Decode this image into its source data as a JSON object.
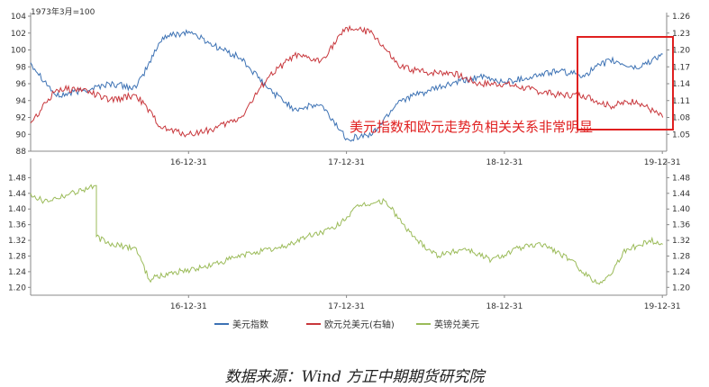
{
  "chart_data": [
    {
      "type": "line",
      "panel": "top",
      "left_axis_note": "1973年3月=100",
      "ylim_left": [
        88,
        104
      ],
      "yticks_left": [
        "88",
        "90",
        "92",
        "94",
        "96",
        "98",
        "100",
        "102",
        "104"
      ],
      "ylim_right": [
        1.02,
        1.26
      ],
      "yticks_right": [
        "1.05",
        "1.08",
        "1.11",
        "1.14",
        "1.17",
        "1.20",
        "1.23",
        "1.26"
      ],
      "x_ticks": [
        "16-12-31",
        "17-12-31",
        "18-12-31",
        "19-12-31"
      ],
      "annotation": "美元指数和欧元走势负相关关系非常明显",
      "series": [
        {
          "name": "美元指数",
          "axis": "left",
          "color": "#3d72b4",
          "x": [
            "2016-01",
            "2016-03",
            "2016-05",
            "2016-07",
            "2016-09",
            "2016-11",
            "2017-01",
            "2017-03",
            "2017-05",
            "2017-07",
            "2017-09",
            "2017-11",
            "2018-01",
            "2018-03",
            "2018-05",
            "2018-07",
            "2018-09",
            "2018-11",
            "2019-01",
            "2019-03",
            "2019-05",
            "2019-07",
            "2019-09",
            "2019-11",
            "2020-01"
          ],
          "values": [
            98.5,
            94.5,
            95.2,
            96.0,
            95.5,
            101.5,
            102.2,
            100.5,
            99.0,
            95.5,
            93.0,
            93.5,
            89.5,
            90.0,
            94.0,
            95.0,
            96.0,
            96.8,
            96.2,
            96.8,
            97.5,
            97.0,
            98.8,
            97.8,
            99.5
          ]
        },
        {
          "name": "欧元兑美元(右轴)",
          "axis": "right",
          "color": "#c8373c",
          "x": [
            "2016-01",
            "2016-03",
            "2016-05",
            "2016-07",
            "2016-09",
            "2016-11",
            "2017-01",
            "2017-03",
            "2017-05",
            "2017-07",
            "2017-09",
            "2017-11",
            "2018-01",
            "2018-03",
            "2018-05",
            "2018-07",
            "2018-09",
            "2018-11",
            "2019-01",
            "2019-03",
            "2019-05",
            "2019-07",
            "2019-09",
            "2019-11",
            "2020-01"
          ],
          "values": [
            1.07,
            1.13,
            1.13,
            1.11,
            1.12,
            1.06,
            1.05,
            1.06,
            1.08,
            1.15,
            1.19,
            1.18,
            1.24,
            1.23,
            1.17,
            1.16,
            1.16,
            1.14,
            1.14,
            1.13,
            1.12,
            1.12,
            1.1,
            1.11,
            1.08
          ]
        }
      ]
    },
    {
      "type": "line",
      "panel": "bottom",
      "ylim_left": [
        1.18,
        1.52
      ],
      "yticks_left": [
        "1.20",
        "1.24",
        "1.28",
        "1.32",
        "1.36",
        "1.40",
        "1.44",
        "1.48"
      ],
      "yticks_right": [
        "1.20",
        "1.24",
        "1.28",
        "1.32",
        "1.36",
        "1.40",
        "1.44",
        "1.48"
      ],
      "x_ticks": [
        "16-12-31",
        "17-12-31",
        "18-12-31",
        "19-12-31"
      ],
      "series": [
        {
          "name": "英镑兑美元",
          "axis": "left",
          "color": "#9bbb59",
          "x": [
            "2016-01",
            "2016-02",
            "2016-04",
            "2016-06",
            "2016-06",
            "2016-07",
            "2016-09",
            "2016-10",
            "2016-12",
            "2017-02",
            "2017-04",
            "2017-06",
            "2017-08",
            "2017-10",
            "2017-12",
            "2018-02",
            "2018-04",
            "2018-06",
            "2018-08",
            "2018-10",
            "2018-12",
            "2019-02",
            "2019-04",
            "2019-06",
            "2019-08",
            "2019-09",
            "2019-10",
            "2019-12",
            "2020-01"
          ],
          "values": [
            1.44,
            1.42,
            1.44,
            1.46,
            1.33,
            1.31,
            1.3,
            1.22,
            1.24,
            1.25,
            1.27,
            1.29,
            1.3,
            1.33,
            1.35,
            1.41,
            1.42,
            1.33,
            1.28,
            1.3,
            1.27,
            1.3,
            1.31,
            1.27,
            1.21,
            1.23,
            1.29,
            1.32,
            1.31
          ]
        }
      ]
    }
  ],
  "legend": [
    {
      "label": "美元指数",
      "color": "#3d72b4"
    },
    {
      "label": "欧元兑美元(右轴)",
      "color": "#c8373c"
    },
    {
      "label": "英镑兑美元",
      "color": "#9bbb59"
    }
  ],
  "source": "数据来源：Wind 方正中期期货研究院"
}
